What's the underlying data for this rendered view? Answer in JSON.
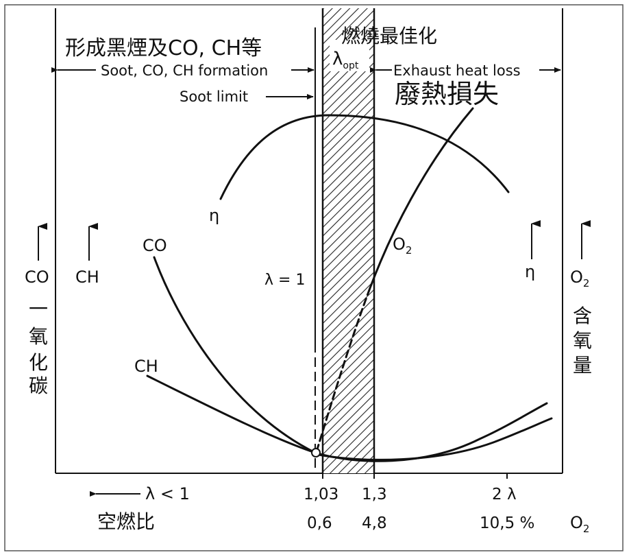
{
  "labels": {
    "top_left_zh": "形成黑煙及CO, CH等",
    "top_right_zh": "燃燒最佳化",
    "lambda_opt_main": "λ",
    "lambda_opt_sub": "opt",
    "soot_formation": "Soot, CO, CH formation",
    "exhaust_heat_loss": "Exhaust heat loss",
    "soot_limit": "Soot limit",
    "heat_loss_zh": "廢熱損失",
    "eta": "η",
    "co_curve": "CO",
    "ch_curve": "CH",
    "o2_main": "O",
    "o2_sub": "2",
    "lambda_eq_1": "λ = 1",
    "axis_co": "CO",
    "axis_ch": "CH",
    "axis_co_zh": [
      "一",
      "氧",
      "化",
      "碳"
    ],
    "axis_eta": "η",
    "axis_o2_main": "O",
    "axis_o2_sub": "2",
    "axis_o2_zh": [
      "含",
      "氧",
      "量"
    ],
    "x_lambda_lt1": "λ < 1",
    "x_ratio_zh": "空燃比",
    "x_tick_103": "1,03",
    "x_tick_13": "1,3",
    "x_tick_2l": "2 λ",
    "x_o2_06": "0,6",
    "x_o2_48": "4,8",
    "x_o2_105": "10,5 %",
    "x_o2_main": "O",
    "x_o2_sub": "2"
  }
}
